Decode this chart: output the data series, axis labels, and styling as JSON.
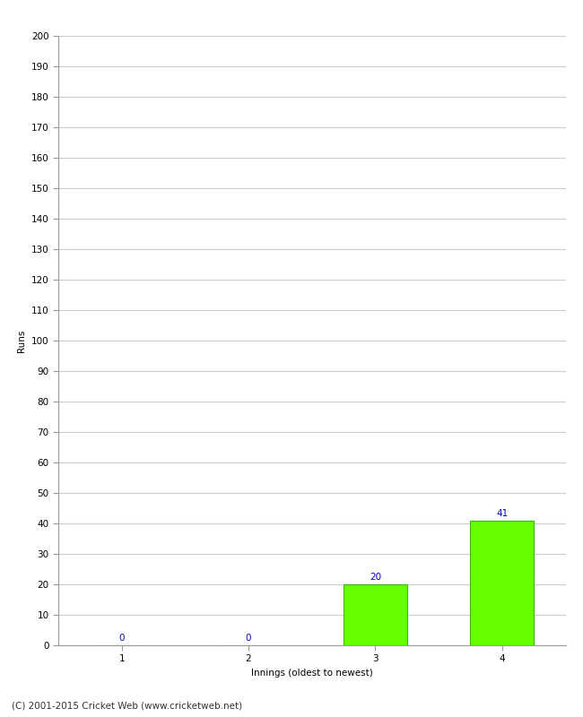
{
  "categories": [
    1,
    2,
    3,
    4
  ],
  "values": [
    0,
    0,
    20,
    41
  ],
  "bar_color": "#66ff00",
  "bar_edge_color": "#33bb00",
  "value_label_color": "#0000cc",
  "xlabel": "Innings (oldest to newest)",
  "ylabel": "Runs",
  "ylim": [
    0,
    200
  ],
  "yticks": [
    0,
    10,
    20,
    30,
    40,
    50,
    60,
    70,
    80,
    90,
    100,
    110,
    120,
    130,
    140,
    150,
    160,
    170,
    180,
    190,
    200
  ],
  "background_color": "#ffffff",
  "grid_color": "#cccccc",
  "footer_text": "(C) 2001-2015 Cricket Web (www.cricketweb.net)",
  "value_fontsize": 7.5,
  "axis_label_fontsize": 7.5,
  "tick_fontsize": 7.5,
  "footer_fontsize": 7.5,
  "bar_width": 0.5
}
